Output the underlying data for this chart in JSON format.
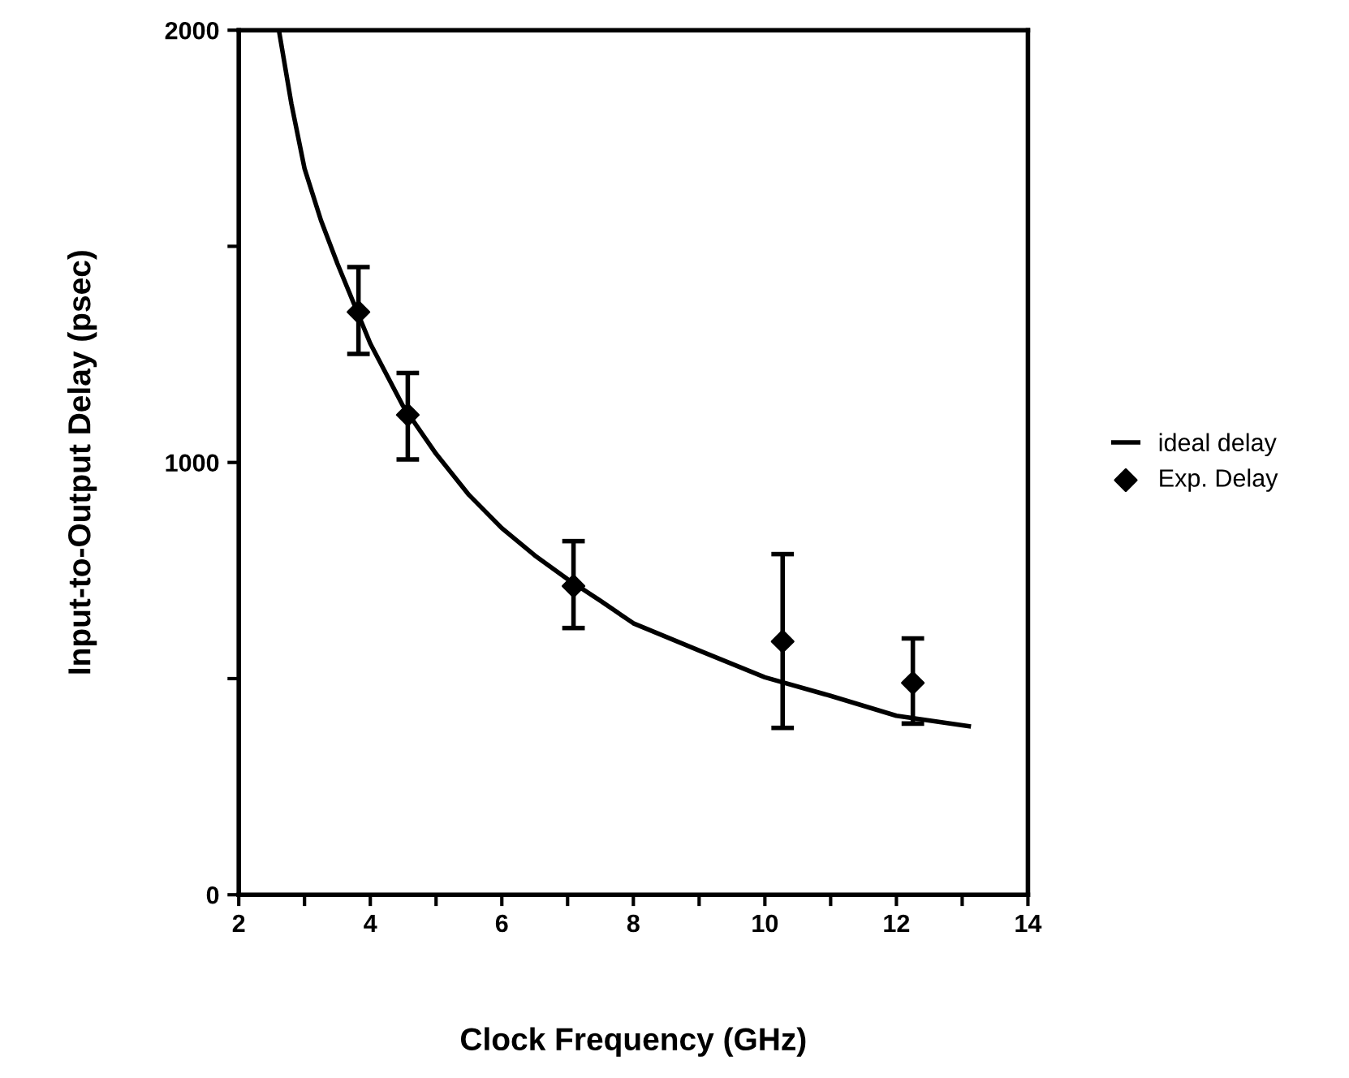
{
  "chart_data": {
    "type": "line",
    "xlabel": "Clock Frequency (GHz)",
    "ylabel": "Input-to-Output Delay (psec)",
    "xlim": [
      2,
      14
    ],
    "ylim": [
      0,
      2000
    ],
    "xticks": [
      2,
      {
        "value": 3,
        "label": null
      },
      4,
      {
        "value": 5,
        "label": null
      },
      6,
      {
        "value": 7,
        "label": null
      },
      8,
      {
        "value": 9,
        "label": null
      },
      10,
      {
        "value": 11,
        "label": null
      },
      12,
      {
        "value": 13,
        "label": null
      },
      14
    ],
    "yticks": [
      0,
      {
        "value": 500,
        "label": null
      },
      1000,
      {
        "value": 1500,
        "label": null
      },
      2000
    ],
    "grid": false,
    "legend": "right",
    "series": [
      {
        "name": "ideal delay",
        "color": "#000000",
        "marker": "none",
        "line_style": "solid",
        "x": [
          2.61,
          2.8,
          3,
          3.25,
          3.5,
          4,
          4.5,
          5,
          5.5,
          6,
          6.5,
          7,
          7.5,
          8,
          9,
          10,
          11,
          12,
          13.1
        ],
        "values": [
          2000,
          1830,
          1680,
          1560,
          1460,
          1275,
          1130,
          1020,
          925,
          848,
          785,
          730,
          680,
          628,
          565,
          503,
          460,
          414,
          390
        ]
      },
      {
        "name": "Exp. Delay",
        "type": "scatter",
        "color": "#000000",
        "marker": "diamond",
        "x": [
          3.82,
          4.57,
          7.09,
          10.27,
          12.25
        ],
        "values": [
          1348,
          1110,
          714,
          586,
          490
        ],
        "errors": [
          [
            1251,
            1452
          ],
          [
            1007,
            1207
          ],
          [
            617,
            818
          ],
          [
            386,
            788
          ],
          [
            396,
            593
          ]
        ]
      }
    ]
  }
}
